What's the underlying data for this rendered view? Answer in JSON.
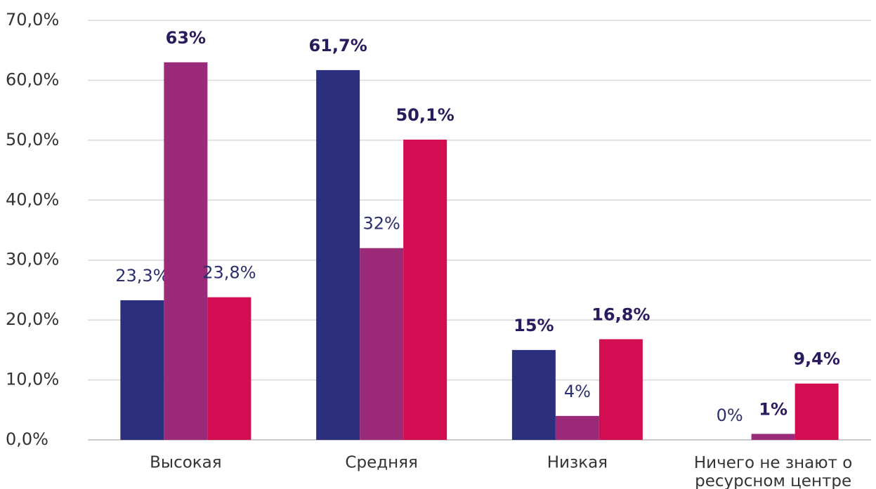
{
  "chart_data": {
    "type": "bar",
    "categories": [
      "Высокая",
      "Средняя",
      "Низкая",
      "Ничего не знают о\nресурсном центре"
    ],
    "series": [
      {
        "color": "#2b2f7e",
        "values": [
          23.3,
          61.7,
          15,
          0
        ],
        "value_labels": [
          "23,3%",
          "61,7%",
          "15%",
          "0%"
        ]
      },
      {
        "color": "#9b2a78",
        "values": [
          63,
          32,
          4,
          1
        ],
        "value_labels": [
          "63%",
          "32%",
          "4%",
          "1%"
        ]
      },
      {
        "color": "#d30d52",
        "values": [
          23.8,
          50.1,
          16.8,
          9.4
        ],
        "value_labels": [
          "23,8%",
          "50,1%",
          "16,8%",
          "9,4%"
        ]
      }
    ],
    "ylim": [
      0,
      70
    ],
    "yticks": [
      {
        "value": 0,
        "label": "0,0%"
      },
      {
        "value": 10,
        "label": "10,0%"
      },
      {
        "value": 20,
        "label": "20,0%"
      },
      {
        "value": 30,
        "label": "30,0%"
      },
      {
        "value": 40,
        "label": "40,0%"
      },
      {
        "value": 50,
        "label": "50,0%"
      },
      {
        "value": 60,
        "label": "60,0%"
      },
      {
        "value": 70,
        "label": "70,0%"
      }
    ],
    "grid": true
  }
}
